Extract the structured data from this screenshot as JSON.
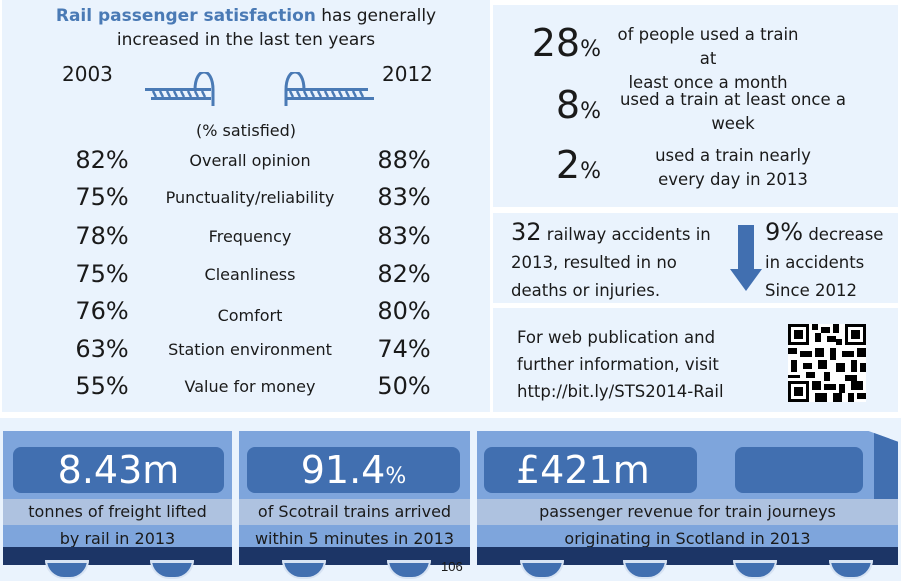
{
  "satisfaction": {
    "title_highlight": "Rail passenger satisfaction",
    "title_rest_1": " has generally",
    "title_line_2": "increased in the last ten years",
    "year_left": "2003",
    "year_right": "2012",
    "subhead": "(% satisfied)",
    "rows": [
      {
        "label": "Overall opinion",
        "y2003": "82%",
        "y2012": "88%"
      },
      {
        "label": "Punctuality/reliability",
        "y2003": "75%",
        "y2012": "83%"
      },
      {
        "label": "Frequency",
        "y2003": "78%",
        "y2012": "83%"
      },
      {
        "label": "Cleanliness",
        "y2003": "75%",
        "y2012": "82%"
      },
      {
        "label": "Comfort",
        "y2003": "76%",
        "y2012": "80%"
      },
      {
        "label": "Station environment",
        "y2003": "63%",
        "y2012": "74%"
      },
      {
        "label": "Value for money",
        "y2003": "55%",
        "y2012": "50%"
      }
    ]
  },
  "usage": [
    {
      "num": "28",
      "pct": "%",
      "line1": "of people used a train at",
      "line2": "least once a month"
    },
    {
      "num": "8",
      "pct": "%",
      "line1": "used a train at least once a",
      "line2": "week"
    },
    {
      "num": "2",
      "pct": "%",
      "line1": "used a train nearly",
      "line2": "every day in 2013"
    }
  ],
  "accidents": {
    "count": "32",
    "line1": " railway accidents in",
    "line2": "2013, resulted in no",
    "line3": "deaths or injuries.",
    "decrease_value": "9%",
    "decrease_line1": " decrease",
    "decrease_line2": "in accidents",
    "decrease_line3": "Since 2012"
  },
  "web": {
    "line1": "For web publication and",
    "line2": "further information, visit",
    "line3": "http://bit.ly/STS2014-Rail"
  },
  "train": {
    "freight_value": "8.43m",
    "freight_line1": "tonnes of freight lifted",
    "freight_line2": "by rail in 2013",
    "punct_value": "91.4",
    "punct_pct": "%",
    "punct_line1": "of Scotrail trains arrived",
    "punct_line2": "within 5 minutes in 2013",
    "revenue_value": "£421m",
    "revenue_line1": "passenger revenue for train journeys",
    "revenue_line2": "originating in Scotland in 2013"
  },
  "page_number": "106",
  "colors": {
    "accent": "#4a7ab5",
    "panel": "#eaf3fd",
    "car": "#7ea5dc",
    "window": "#416fb0",
    "floor": "#1c3566"
  }
}
